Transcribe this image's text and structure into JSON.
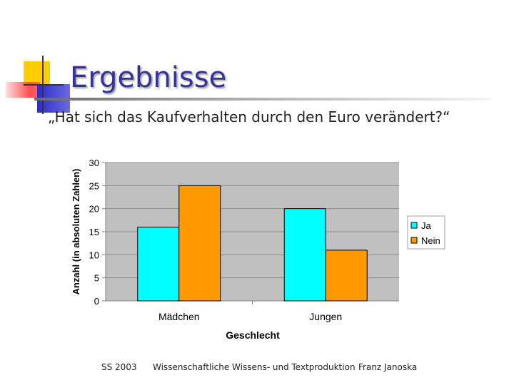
{
  "slide": {
    "title": "Ergebnisse",
    "subtitle": "„Hat sich das Kaufverhalten durch den Euro verändert?“"
  },
  "footer": {
    "left": "SS 2003",
    "center": "Wissenschaftliche Wissens- und Textproduktion",
    "right": "Franz Janoska"
  },
  "colors": {
    "plot_bg": "#c0c0c0",
    "ja": "#00ffff",
    "nein": "#ff9900",
    "title": "#333399"
  },
  "chart_data": {
    "type": "bar",
    "title": "",
    "xlabel": "Geschlecht",
    "ylabel": "Anzahl  (in absoluten Zahlen)",
    "categories": [
      "Mädchen",
      "Jungen"
    ],
    "series": [
      {
        "name": "Ja",
        "values": [
          16,
          20
        ],
        "color": "#00ffff"
      },
      {
        "name": "Nein",
        "values": [
          25,
          11
        ],
        "color": "#ff9900"
      }
    ],
    "ylim": [
      0,
      30
    ],
    "yticks": [
      "0",
      "5",
      "10",
      "15",
      "20",
      "25",
      "30"
    ],
    "grid": true,
    "legend": "right"
  }
}
